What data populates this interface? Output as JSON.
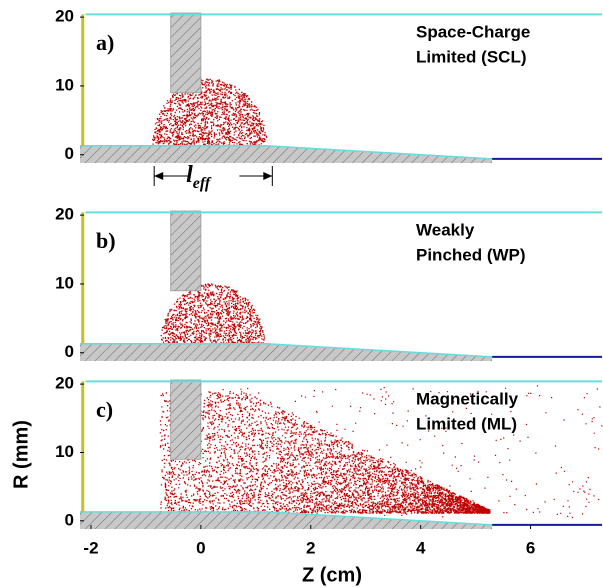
{
  "chart_data": [
    {
      "type": "scatter",
      "panel_label": "a)",
      "annotation": [
        "Space-Charge",
        "Limited (SCL)"
      ],
      "leff_symbol": "l",
      "leff_subscript": "eff",
      "xlim": [
        -2.2,
        7.3
      ],
      "ylim": [
        -1.2,
        20.6
      ],
      "yticks": [
        0,
        10,
        20
      ]
    },
    {
      "type": "scatter",
      "panel_label": "b)",
      "annotation": [
        "Weakly",
        "Pinched (WP)"
      ],
      "xlim": [
        -2.2,
        7.3
      ],
      "ylim": [
        -1.2,
        20.6
      ],
      "yticks": [
        0,
        10,
        20
      ]
    },
    {
      "type": "scatter",
      "panel_label": "c)",
      "annotation": [
        "Magnetically",
        "Limited (ML)"
      ],
      "xlim": [
        -2.2,
        7.3
      ],
      "ylim": [
        -1.2,
        20.6
      ],
      "yticks": [
        0,
        10,
        20
      ],
      "xticks": [
        -2,
        0,
        2,
        4,
        6
      ],
      "x_label": "Z (cm)",
      "y_label": "R (mm)"
    }
  ]
}
